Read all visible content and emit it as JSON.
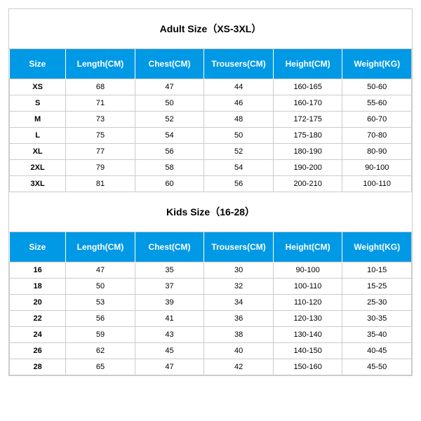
{
  "colors": {
    "header_bg": "#0099e5",
    "border": "#cccccc",
    "text": "#000000",
    "header_text": "#ffffff"
  },
  "adult": {
    "title": "Adult Size（XS-3XL）",
    "title_fontsize": 14,
    "columns": [
      "Size",
      "Length(CM)",
      "Chest(CM)",
      "Trousers(CM)",
      "Height(CM)",
      "Weight(KG)"
    ],
    "rows": [
      [
        "XS",
        "68",
        "47",
        "44",
        "160-165",
        "50-60"
      ],
      [
        "S",
        "71",
        "50",
        "46",
        "160-170",
        "55-60"
      ],
      [
        "M",
        "73",
        "52",
        "48",
        "172-175",
        "60-70"
      ],
      [
        "L",
        "75",
        "54",
        "50",
        "175-180",
        "70-80"
      ],
      [
        "XL",
        "77",
        "56",
        "52",
        "180-190",
        "80-90"
      ],
      [
        "2XL",
        "79",
        "58",
        "54",
        "190-200",
        "90-100"
      ],
      [
        "3XL",
        "81",
        "60",
        "56",
        "200-210",
        "100-110"
      ]
    ]
  },
  "kids": {
    "title": "Kids Size（16-28）",
    "title_fontsize": 14,
    "columns": [
      "Size",
      "Length(CM)",
      "Chest(CM)",
      "Trousers(CM)",
      "Height(CM)",
      "Weight(KG)"
    ],
    "rows": [
      [
        "16",
        "47",
        "35",
        "30",
        "90-100",
        "10-15"
      ],
      [
        "18",
        "50",
        "37",
        "32",
        "100-110",
        "15-25"
      ],
      [
        "20",
        "53",
        "39",
        "34",
        "110-120",
        "25-30"
      ],
      [
        "22",
        "56",
        "41",
        "36",
        "120-130",
        "30-35"
      ],
      [
        "24",
        "59",
        "43",
        "38",
        "130-140",
        "35-40"
      ],
      [
        "26",
        "62",
        "45",
        "40",
        "140-150",
        "40-45"
      ],
      [
        "28",
        "65",
        "47",
        "42",
        "150-160",
        "45-50"
      ]
    ]
  }
}
